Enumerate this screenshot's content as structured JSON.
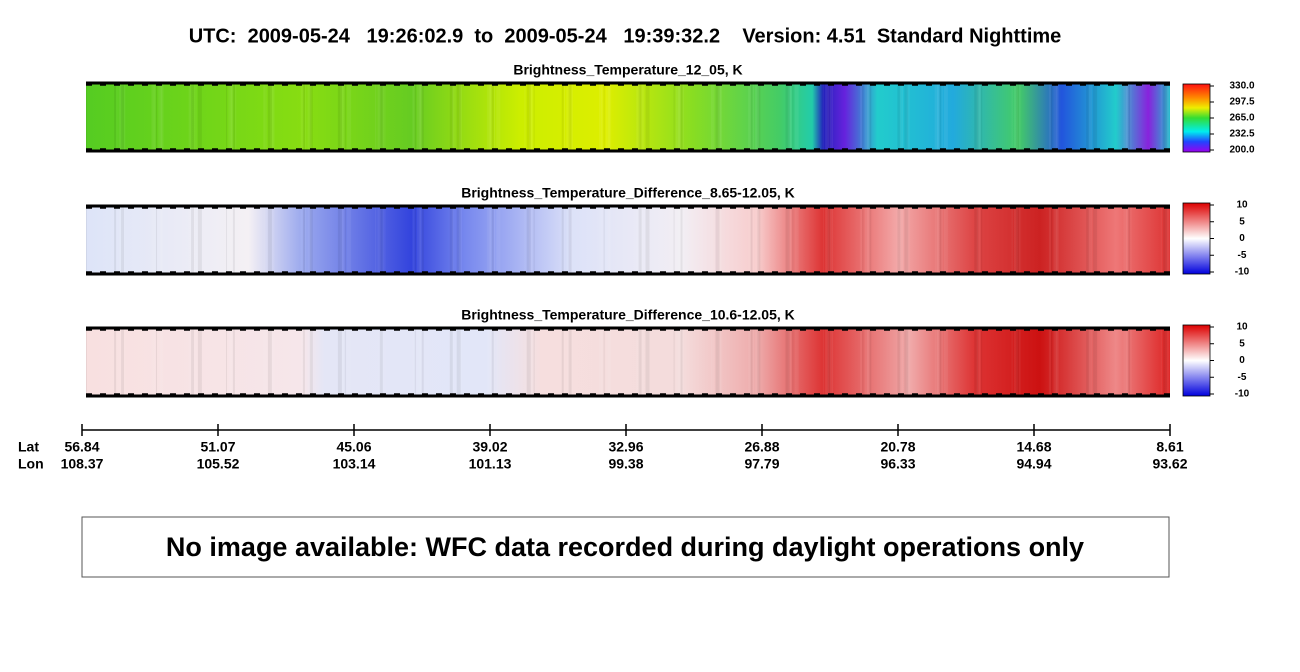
{
  "header": {
    "title": "UTC:  2009-05-24   19:26:02.9  to  2009-05-24   19:39:32.2    Version: 4.51  Standard Nighttime"
  },
  "panels": [
    {
      "title": "Brightness_Temperature_12_05, K",
      "colorbar": [
        "330.0",
        "297.5",
        "265.0",
        "232.5",
        "200.0"
      ]
    },
    {
      "title": "Brightness_Temperature_Difference_8.65-12.05, K",
      "colorbar": [
        "10",
        "5",
        "0",
        "-5",
        "-10"
      ]
    },
    {
      "title": "Brightness_Temperature_Difference_10.6-12.05, K",
      "colorbar": [
        "10",
        "5",
        "0",
        "-5",
        "-10"
      ]
    }
  ],
  "axis": {
    "lat_label": "Lat",
    "lon_label": "Lon",
    "lat": [
      "56.84",
      "51.07",
      "45.06",
      "39.02",
      "32.96",
      "26.88",
      "20.78",
      "14.68",
      "8.61"
    ],
    "lon": [
      "108.37",
      "105.52",
      "103.14",
      "101.13",
      "99.38",
      "97.79",
      "96.33",
      "94.94",
      "93.62"
    ]
  },
  "notice": "No image available: WFC data recorded during daylight operations only"
}
